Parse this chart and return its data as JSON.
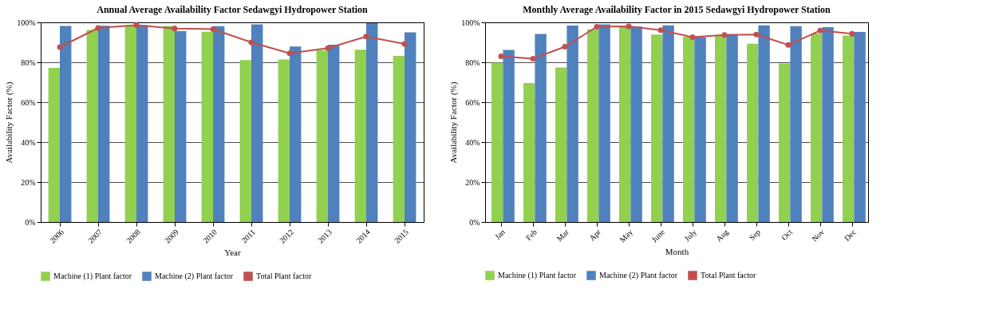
{
  "chart_data": [
    {
      "type": "bar",
      "title": "Annual Average Availability Factor  Sedawgyi Hydropower Station",
      "xlabel": "Year",
      "ylabel": "Availability Factor (%)",
      "categories": [
        "2006",
        "2007",
        "2008",
        "2009",
        "2010",
        "2011",
        "2012",
        "2013",
        "2014",
        "2015"
      ],
      "series": [
        {
          "name": "Machine (1) Plant factor",
          "color": "#92d050",
          "values": [
            77.2,
            96.2,
            98.6,
            98.2,
            95.3,
            81.1,
            81.4,
            86.1,
            86.3,
            83.2
          ]
        },
        {
          "name": "Machine (2) Plant factor",
          "color": "#4f81bd",
          "values": [
            98.2,
            98.3,
            98.6,
            95.6,
            98.1,
            99.0,
            87.9,
            88.8,
            99.6,
            95.0
          ]
        },
        {
          "name": "Total Plant factor",
          "color": "#c0504d",
          "type": "line",
          "marker": "circle",
          "values": [
            87.6,
            97.2,
            98.6,
            96.9,
            96.6,
            90.0,
            84.5,
            87.1,
            92.9,
            89.2
          ]
        }
      ],
      "ylim": [
        0,
        100
      ],
      "yticks": [
        {
          "value": 0,
          "label": "0%"
        },
        {
          "value": 20,
          "label": "20%"
        },
        {
          "value": 40,
          "label": "40%"
        },
        {
          "value": 60,
          "label": "60%"
        },
        {
          "value": 80,
          "label": "80%"
        },
        {
          "value": 100,
          "label": "100%"
        }
      ],
      "grid": "y",
      "legend": "bottom"
    },
    {
      "type": "bar",
      "title": "Monthly Average Availability Factor in 2015  Sedawgyi Hydropower Station",
      "xlabel": "Month",
      "ylabel": "Availability  Factor (%)",
      "categories": [
        "Jan",
        "Feb",
        "Mar",
        "Apr",
        "May",
        "June",
        "July",
        "Aug",
        "Sep",
        "Oct",
        "Nov",
        "Dec"
      ],
      "series": [
        {
          "name": "Machine (1) Plant factor",
          "color": "#92d050",
          "values": [
            79.8,
            69.6,
            77.4,
            96.5,
            98.1,
            93.9,
            92.8,
            93.3,
            89.3,
            79.4,
            94.4,
            93.4
          ]
        },
        {
          "name": "Machine (2) Plant factor",
          "color": "#4f81bd",
          "values": [
            86.2,
            94.2,
            98.4,
            99.0,
            97.9,
            98.5,
            92.6,
            94.1,
            98.5,
            98.1,
            97.6,
            95.2
          ]
        },
        {
          "name": "Total Plant factor",
          "color": "#c0504d",
          "type": "line",
          "marker": "circle",
          "values": [
            83.0,
            81.8,
            87.8,
            97.8,
            98.0,
            96.1,
            92.6,
            93.7,
            93.9,
            88.7,
            95.9,
            94.3
          ]
        }
      ],
      "ylim": [
        0,
        100
      ],
      "yticks": [
        {
          "value": 0,
          "label": "0%"
        },
        {
          "value": 20,
          "label": "20%"
        },
        {
          "value": 40,
          "label": "40%"
        },
        {
          "value": 60,
          "label": "60%"
        },
        {
          "value": 80,
          "label": "80%"
        },
        {
          "value": 100,
          "label": "100%"
        }
      ],
      "grid": "y",
      "legend": "bottom"
    }
  ]
}
